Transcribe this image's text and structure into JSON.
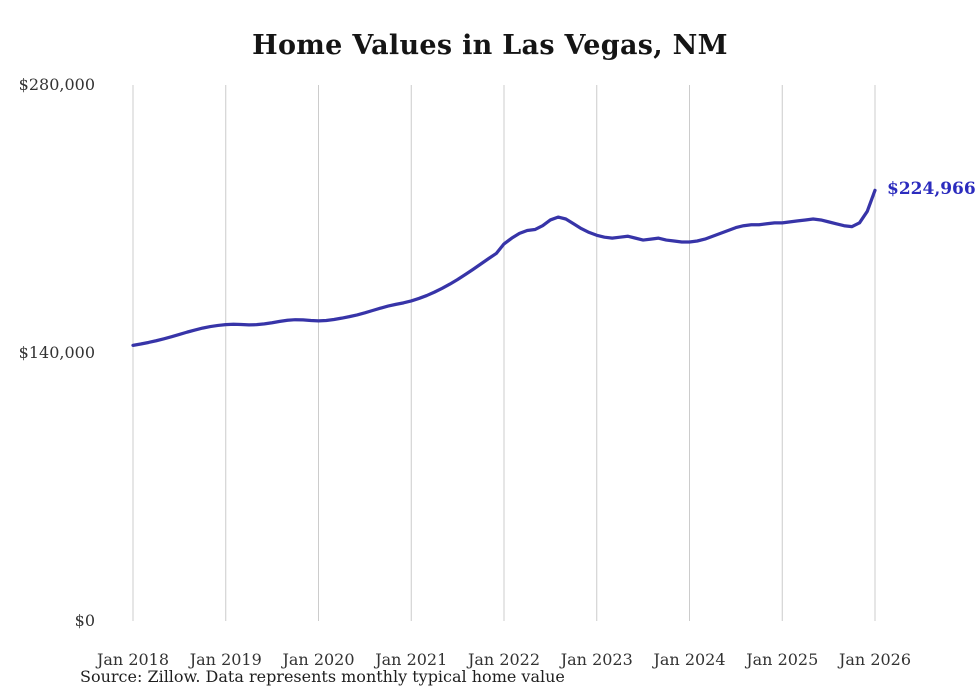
{
  "chart_data": {
    "type": "line",
    "title": "Home Values in Las Vegas, NM",
    "source": "Source: Zillow. Data represents monthly typical home value",
    "end_label": "$224,966",
    "latest_value": 224966,
    "ylim": [
      0,
      280000
    ],
    "yticks": [
      {
        "value": 0,
        "label": "$0"
      },
      {
        "value": 140000,
        "label": "$140,000"
      },
      {
        "value": 280000,
        "label": "$280,000"
      }
    ],
    "x_tick_labels": [
      "Jan 2018",
      "Jan 2019",
      "Jan 2020",
      "Jan 2021",
      "Jan 2022",
      "Jan 2023",
      "Jan 2024",
      "Jan 2025",
      "Jan 2026"
    ],
    "grid": "vertical-only",
    "legend": "none",
    "series": [
      {
        "name": "Typical home value",
        "cadence": "monthly",
        "start": "Jan 2018",
        "end": "Jan 2026",
        "values": [
          144000,
          144700,
          145500,
          146400,
          147400,
          148500,
          149700,
          150900,
          152000,
          153000,
          153800,
          154400,
          154800,
          155000,
          154900,
          154700,
          154800,
          155200,
          155800,
          156500,
          157100,
          157400,
          157300,
          157000,
          156800,
          157000,
          157500,
          158200,
          159000,
          159900,
          161000,
          162200,
          163400,
          164500,
          165400,
          166200,
          167200,
          168500,
          170000,
          171800,
          173800,
          176000,
          178400,
          181000,
          183700,
          186500,
          189300,
          192000,
          197000,
          200000,
          202500,
          204000,
          204500,
          206500,
          209500,
          211000,
          210000,
          207500,
          205000,
          203000,
          201500,
          200500,
          200000,
          200500,
          201000,
          200000,
          199000,
          199500,
          200000,
          199000,
          198500,
          198000,
          198000,
          198500,
          199500,
          201000,
          202500,
          204000,
          205500,
          206500,
          207000,
          207000,
          207500,
          208000,
          208000,
          208500,
          209000,
          209500,
          210000,
          209500,
          208500,
          207500,
          206500,
          206000,
          208000,
          214000,
          224966
        ]
      }
    ],
    "colors": {
      "line": "#3734a8",
      "end_label": "#2c2cbe",
      "gridline": "#cccccc",
      "background": "#ffffff"
    }
  }
}
